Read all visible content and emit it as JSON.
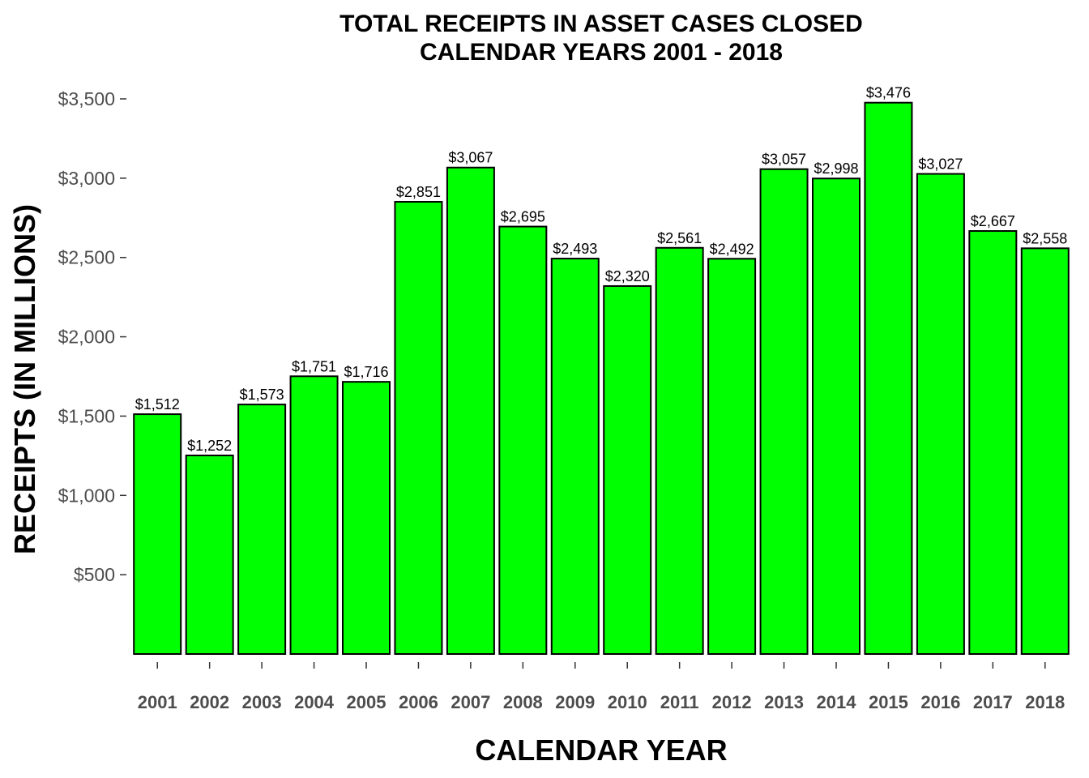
{
  "chart_data": {
    "type": "bar",
    "title": "TOTAL RECEIPTS IN ASSET CASES CLOSED",
    "subtitle": "CALENDAR YEARS 2001 - 2018",
    "xlabel": "CALENDAR YEAR",
    "ylabel": "RECEIPTS (IN MILLIONS)",
    "categories": [
      "2001",
      "2002",
      "2003",
      "2004",
      "2005",
      "2006",
      "2007",
      "2008",
      "2009",
      "2010",
      "2011",
      "2012",
      "2013",
      "2014",
      "2015",
      "2016",
      "2017",
      "2018"
    ],
    "values": [
      1512,
      1252,
      1573,
      1751,
      1716,
      2851,
      3067,
      2695,
      2493,
      2320,
      2561,
      2492,
      3057,
      2998,
      3476,
      3027,
      2667,
      2558
    ],
    "value_labels": [
      "$1,512",
      "$1,252",
      "$1,573",
      "$1,751",
      "$1,716",
      "$2,851",
      "$3,067",
      "$2,695",
      "$2,493",
      "$2,320",
      "$2,561",
      "$2,492",
      "$3,057",
      "$2,998",
      "$3,476",
      "$3,027",
      "$2,667",
      "$2,558"
    ],
    "yticks": [
      500,
      1000,
      1500,
      2000,
      2500,
      3000,
      3500
    ],
    "ytick_labels": [
      "$500",
      "$1,000",
      "$1,500",
      "$2,000",
      "$2,500",
      "$3,000",
      "$3,500"
    ],
    "ylim": [
      0,
      3500
    ],
    "bar_color": "#00ff00",
    "bar_border_color": "#000000",
    "grid": false,
    "legend": "none"
  }
}
